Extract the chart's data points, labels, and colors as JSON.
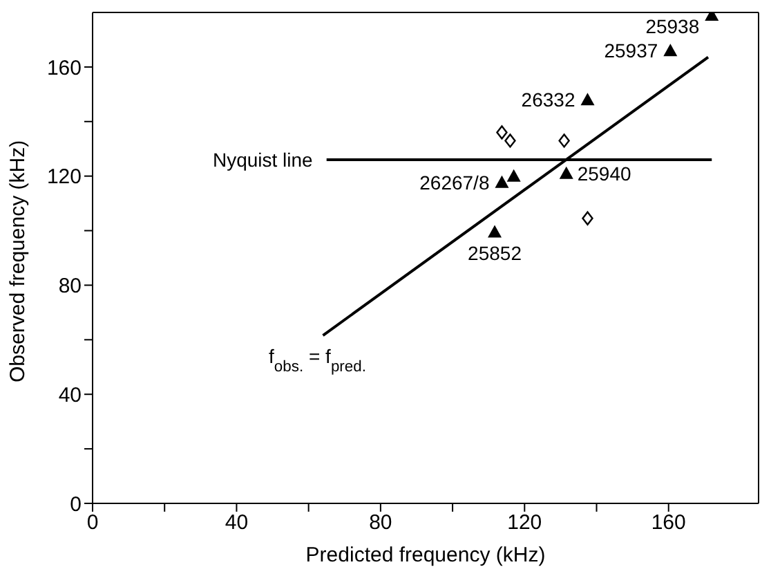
{
  "chart_data": {
    "type": "scatter",
    "xlabel": "Predicted frequency (kHz)",
    "ylabel": "Observed frequency (kHz)",
    "xlim": [
      0,
      185
    ],
    "ylim": [
      0,
      180
    ],
    "xticks": [
      0,
      {
        "value": 20,
        "label": null
      },
      40,
      {
        "value": 60,
        "label": null
      },
      80,
      {
        "value": 100,
        "label": null
      },
      120,
      {
        "value": 140,
        "label": null
      },
      160
    ],
    "yticks": [
      0,
      {
        "value": 20,
        "label": null
      },
      40,
      {
        "value": 60,
        "label": null
      },
      80,
      {
        "value": 100,
        "label": null
      },
      120,
      {
        "value": 140,
        "label": null
      },
      160
    ],
    "series": [
      {
        "type": "scatter",
        "marker": "triangle",
        "color": "#000000",
        "x": [
          172,
          160.5,
          137.5,
          113.7,
          117,
          131.6,
          111.7
        ],
        "values": [
          179,
          166,
          148,
          117.7,
          120,
          121,
          99.5
        ]
      },
      {
        "type": "scatter",
        "marker": "diamond",
        "color": "#000000",
        "x": [
          113.7,
          116,
          131,
          137.5
        ],
        "values": [
          136,
          133,
          133,
          104.5
        ]
      },
      {
        "type": "line",
        "marker": "none",
        "color": "#000000",
        "x": [
          64,
          171
        ],
        "values": [
          61.6,
          163.6
        ]
      },
      {
        "type": "line",
        "marker": "none",
        "name": "Nyquist line",
        "color": "#000000",
        "x": [
          65,
          172
        ],
        "values": [
          126,
          126
        ]
      }
    ],
    "annotations": [
      {
        "text": "25938",
        "x": 172,
        "y": 179
      },
      {
        "text": "25937",
        "x": 160.5,
        "y": 166
      },
      {
        "text": "26332",
        "x": 137.5,
        "y": 148
      },
      {
        "text": "26267/8",
        "x": 113.7,
        "y": 117.7
      },
      {
        "text": "25940",
        "x": 131.6,
        "y": 121
      },
      {
        "text": "25852",
        "x": 111.7,
        "y": 99.5
      },
      {
        "text": "f$_{obs.}$ = f$_{pred.}$",
        "x": 64,
        "y": 61.6
      }
    ]
  }
}
